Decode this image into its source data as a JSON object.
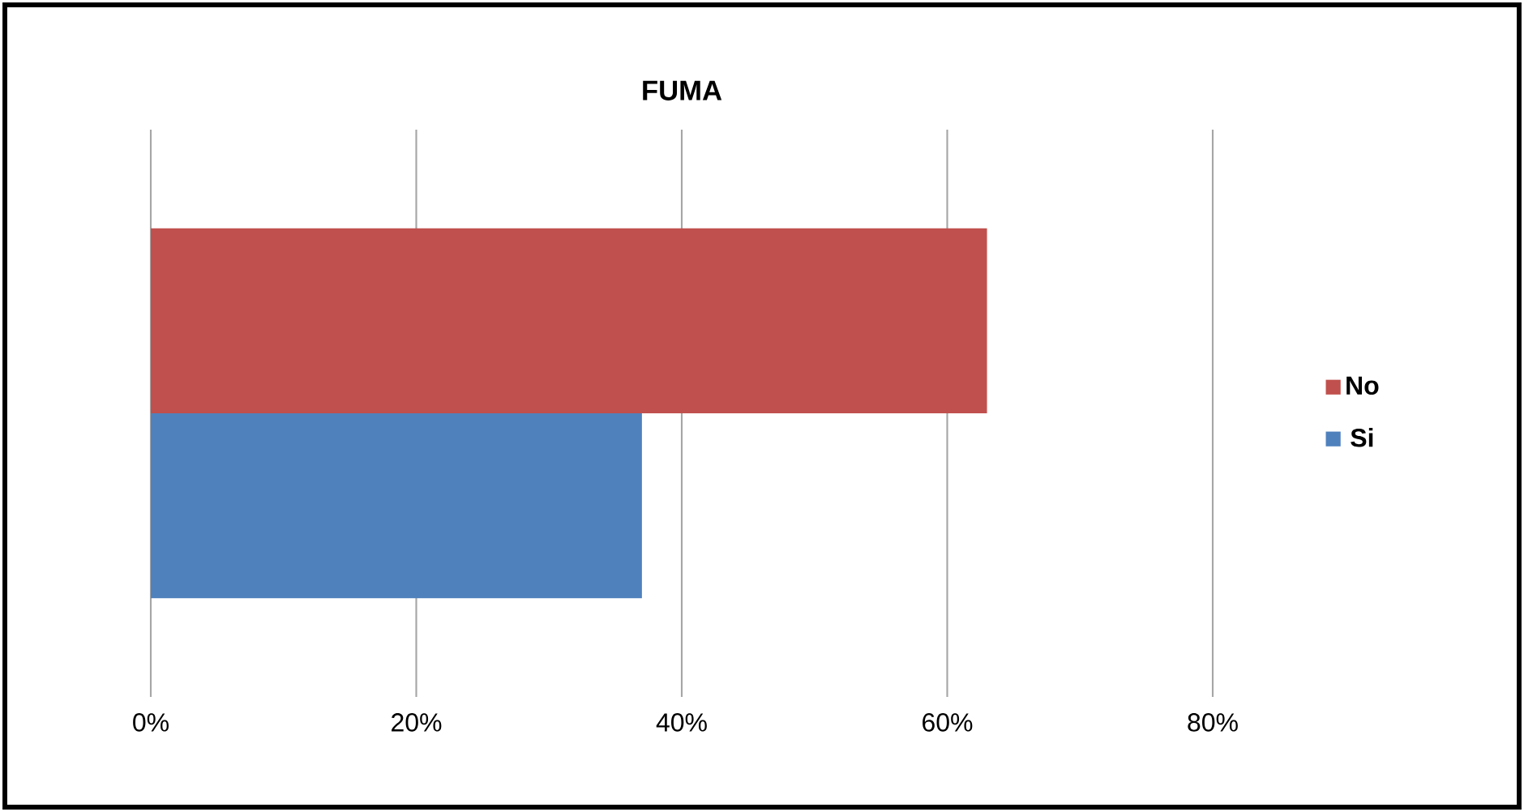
{
  "chart_data": {
    "type": "bar",
    "orientation": "horizontal",
    "title": "FUMA",
    "categories": [
      null
    ],
    "series": [
      {
        "name": "Si",
        "color": "#4f81bd",
        "values": [
          37
        ]
      },
      {
        "name": "No",
        "color": "#c0504d",
        "values": [
          63
        ]
      }
    ],
    "xlim": [
      0,
      80
    ],
    "xticks": [
      {
        "value": 0,
        "label": "0%"
      },
      {
        "value": 20,
        "label": "20%"
      },
      {
        "value": 40,
        "label": "40%"
      },
      {
        "value": 60,
        "label": "60%"
      },
      {
        "value": 80,
        "label": "80%"
      }
    ],
    "grid": "x",
    "legend": "right"
  }
}
